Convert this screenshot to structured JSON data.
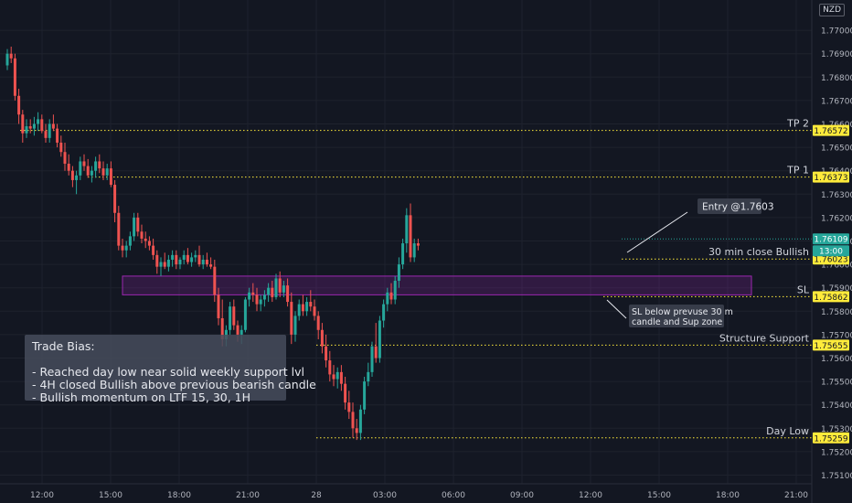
{
  "currency_label": "NZD",
  "trade_bias": {
    "title": "Trade Bias:",
    "lines": [
      "- Reached day low near solid weekly support lvl",
      "- 4H closed Bullish above previous bearish candle",
      "- Bullish momentum on LTF 15, 30, 1H"
    ]
  },
  "colors": {
    "background": "#131722",
    "up": "#26a69a",
    "down": "#ef5350",
    "level_line": "#ffeb3b",
    "zone": "#9c27b0",
    "current_price": "#26a69a"
  },
  "chart_data": {
    "type": "candlestick",
    "ylim": [
      1.751,
      1.7708
    ],
    "y_ticks": [
      "1.75100",
      "1.75200",
      "1.75300",
      "1.75400",
      "1.75500",
      "1.75600",
      "1.75700",
      "1.75800",
      "1.75900",
      "1.76000",
      "1.76100",
      "1.76200",
      "1.76300",
      "1.76400",
      "1.76500",
      "1.76600",
      "1.76700",
      "1.76800",
      "1.76900",
      "1.77000"
    ],
    "x_ticks": [
      "12:00",
      "15:00",
      "18:00",
      "21:00",
      "28",
      "03:00",
      "06:00",
      "09:00",
      "12:00",
      "15:00",
      "18:00",
      "21:00"
    ],
    "levels": [
      {
        "label": "TP 2",
        "price": "1.76572",
        "value": 1.76572
      },
      {
        "label": "TP 1",
        "price": "1.76373",
        "value": 1.76373
      },
      {
        "label": "30 min close Bullish",
        "price": "1.76023",
        "value": 1.76023
      },
      {
        "label": "SL",
        "price": "1.75862",
        "value": 1.75862
      },
      {
        "label": "Structure Support",
        "price": "1.75655",
        "value": 1.75655
      },
      {
        "label": "Day Low",
        "price": "1.75259",
        "value": 1.75259
      }
    ],
    "current_price": {
      "price": "1.76109",
      "value": 1.76109,
      "countdown": "13:00"
    },
    "zone": {
      "high": 1.7595,
      "low": 1.7587
    },
    "annotations": [
      {
        "text": "Entry @1.7603",
        "lines": [
          "Entry @1.7603"
        ]
      },
      {
        "text": "SL below prevuse 30 m candle and Sup zone",
        "lines": [
          "SL below prevuse 30 m",
          "candle and Sup zone"
        ]
      }
    ],
    "candles": [
      [
        1.7685,
        1.7692,
        1.7683,
        1.769
      ],
      [
        1.769,
        1.7693,
        1.7686,
        1.7688
      ],
      [
        1.7688,
        1.769,
        1.767,
        1.7672
      ],
      [
        1.7672,
        1.7675,
        1.766,
        1.7664
      ],
      [
        1.7664,
        1.7666,
        1.7652,
        1.7656
      ],
      [
        1.7656,
        1.7662,
        1.7654,
        1.7659
      ],
      [
        1.7659,
        1.7662,
        1.7656,
        1.7658
      ],
      [
        1.7658,
        1.7663,
        1.7655,
        1.766
      ],
      [
        1.766,
        1.7665,
        1.7657,
        1.7662
      ],
      [
        1.7662,
        1.7664,
        1.7656,
        1.7657
      ],
      [
        1.7657,
        1.766,
        1.7652,
        1.7654
      ],
      [
        1.7654,
        1.7662,
        1.7652,
        1.766
      ],
      [
        1.766,
        1.7664,
        1.7657,
        1.7658
      ],
      [
        1.7658,
        1.766,
        1.765,
        1.7652
      ],
      [
        1.7652,
        1.7655,
        1.7646,
        1.7648
      ],
      [
        1.7648,
        1.7652,
        1.764,
        1.7643
      ],
      [
        1.7643,
        1.7647,
        1.7638,
        1.764
      ],
      [
        1.764,
        1.7642,
        1.7633,
        1.7636
      ],
      [
        1.7636,
        1.764,
        1.763,
        1.7638
      ],
      [
        1.7638,
        1.7646,
        1.7636,
        1.7644
      ],
      [
        1.7644,
        1.7647,
        1.764,
        1.7642
      ],
      [
        1.7642,
        1.7645,
        1.7637,
        1.7638
      ],
      [
        1.7638,
        1.7642,
        1.7635,
        1.764
      ],
      [
        1.764,
        1.7646,
        1.7637,
        1.7644
      ],
      [
        1.7644,
        1.7647,
        1.7639,
        1.7641
      ],
      [
        1.7641,
        1.7644,
        1.7636,
        1.7638
      ],
      [
        1.7638,
        1.7643,
        1.7636,
        1.7641
      ],
      [
        1.7641,
        1.7644,
        1.7633,
        1.7634
      ],
      [
        1.7634,
        1.7636,
        1.7618,
        1.7622
      ],
      [
        1.7622,
        1.7625,
        1.7606,
        1.7608
      ],
      [
        1.7608,
        1.7611,
        1.7603,
        1.7606
      ],
      [
        1.7606,
        1.761,
        1.7603,
        1.7608
      ],
      [
        1.7608,
        1.7614,
        1.7606,
        1.7612
      ],
      [
        1.7612,
        1.7622,
        1.761,
        1.762
      ],
      [
        1.762,
        1.7622,
        1.7612,
        1.7614
      ],
      [
        1.7614,
        1.7617,
        1.7609,
        1.7611
      ],
      [
        1.7611,
        1.7614,
        1.7607,
        1.761
      ],
      [
        1.761,
        1.7612,
        1.7606,
        1.7608
      ],
      [
        1.7608,
        1.7611,
        1.7602,
        1.7604
      ],
      [
        1.7604,
        1.7606,
        1.7596,
        1.7599
      ],
      [
        1.7599,
        1.7603,
        1.7595,
        1.7601
      ],
      [
        1.7601,
        1.7605,
        1.7598,
        1.7599
      ],
      [
        1.7599,
        1.7604,
        1.7597,
        1.7602
      ],
      [
        1.7602,
        1.7606,
        1.7599,
        1.7604
      ],
      [
        1.7604,
        1.7606,
        1.7598,
        1.76
      ],
      [
        1.76,
        1.7603,
        1.7598,
        1.7602
      ],
      [
        1.7602,
        1.7606,
        1.76,
        1.7604
      ],
      [
        1.7604,
        1.7607,
        1.76,
        1.7601
      ],
      [
        1.7601,
        1.7605,
        1.7599,
        1.7603
      ],
      [
        1.7603,
        1.7606,
        1.7601,
        1.7604
      ],
      [
        1.7604,
        1.7608,
        1.7599,
        1.76
      ],
      [
        1.76,
        1.7604,
        1.7598,
        1.7602
      ],
      [
        1.7602,
        1.7605,
        1.7599,
        1.76
      ],
      [
        1.76,
        1.7603,
        1.7598,
        1.7599
      ],
      [
        1.7599,
        1.7602,
        1.7584,
        1.7587
      ],
      [
        1.7587,
        1.759,
        1.7574,
        1.7577
      ],
      [
        1.7577,
        1.7585,
        1.7565,
        1.7568
      ],
      [
        1.7568,
        1.7574,
        1.7565,
        1.7572
      ],
      [
        1.7572,
        1.7584,
        1.757,
        1.7582
      ],
      [
        1.7582,
        1.7585,
        1.7572,
        1.7574
      ],
      [
        1.7574,
        1.7576,
        1.7567,
        1.757
      ],
      [
        1.757,
        1.7574,
        1.7566,
        1.7572
      ],
      [
        1.7572,
        1.7586,
        1.7571,
        1.7585
      ],
      [
        1.7585,
        1.759,
        1.7582,
        1.7588
      ],
      [
        1.7588,
        1.7592,
        1.7584,
        1.7587
      ],
      [
        1.7587,
        1.759,
        1.758,
        1.7583
      ],
      [
        1.7583,
        1.7587,
        1.758,
        1.7585
      ],
      [
        1.7585,
        1.7589,
        1.7582,
        1.7587
      ],
      [
        1.7587,
        1.7592,
        1.7584,
        1.759
      ],
      [
        1.759,
        1.7593,
        1.7584,
        1.7586
      ],
      [
        1.7586,
        1.7596,
        1.7585,
        1.7594
      ],
      [
        1.7594,
        1.7597,
        1.7586,
        1.7588
      ],
      [
        1.7588,
        1.7593,
        1.7586,
        1.7591
      ],
      [
        1.7591,
        1.7594,
        1.7582,
        1.7584
      ],
      [
        1.7584,
        1.7588,
        1.7566,
        1.757
      ],
      [
        1.757,
        1.758,
        1.7567,
        1.7578
      ],
      [
        1.7578,
        1.7585,
        1.7576,
        1.7583
      ],
      [
        1.7583,
        1.7587,
        1.7578,
        1.758
      ],
      [
        1.758,
        1.7586,
        1.7578,
        1.7584
      ],
      [
        1.7584,
        1.7589,
        1.758,
        1.7582
      ],
      [
        1.7582,
        1.7585,
        1.7576,
        1.7578
      ],
      [
        1.7578,
        1.758,
        1.7568,
        1.7572
      ],
      [
        1.7572,
        1.7575,
        1.7562,
        1.7565
      ],
      [
        1.7565,
        1.757,
        1.7556,
        1.7559
      ],
      [
        1.7559,
        1.7563,
        1.755,
        1.7553
      ],
      [
        1.7553,
        1.7557,
        1.7548,
        1.7551
      ],
      [
        1.7551,
        1.7556,
        1.7547,
        1.7554
      ],
      [
        1.7554,
        1.7557,
        1.7546,
        1.7549
      ],
      [
        1.7549,
        1.7552,
        1.7538,
        1.7541
      ],
      [
        1.7541,
        1.7546,
        1.7534,
        1.7537
      ],
      [
        1.7537,
        1.7541,
        1.7526,
        1.753
      ],
      [
        1.753,
        1.7534,
        1.7525,
        1.7528
      ],
      [
        1.7528,
        1.754,
        1.7525,
        1.7538
      ],
      [
        1.7538,
        1.7552,
        1.7536,
        1.755
      ],
      [
        1.755,
        1.7558,
        1.7548,
        1.7554
      ],
      [
        1.7554,
        1.7567,
        1.7552,
        1.7565
      ],
      [
        1.7565,
        1.7575,
        1.7558,
        1.756
      ],
      [
        1.756,
        1.7578,
        1.7558,
        1.7576
      ],
      [
        1.7576,
        1.7585,
        1.7573,
        1.7583
      ],
      [
        1.7583,
        1.759,
        1.758,
        1.7588
      ],
      [
        1.7588,
        1.7592,
        1.7583,
        1.7585
      ],
      [
        1.7585,
        1.7595,
        1.7583,
        1.7593
      ],
      [
        1.7593,
        1.7603,
        1.759,
        1.76
      ],
      [
        1.76,
        1.7611,
        1.7598,
        1.7609
      ],
      [
        1.7609,
        1.7624,
        1.7605,
        1.7621
      ],
      [
        1.7621,
        1.7626,
        1.7601,
        1.7603
      ],
      [
        1.7603,
        1.7611,
        1.7601,
        1.7609
      ],
      [
        1.7609,
        1.7611,
        1.7606,
        1.7608
      ]
    ]
  }
}
